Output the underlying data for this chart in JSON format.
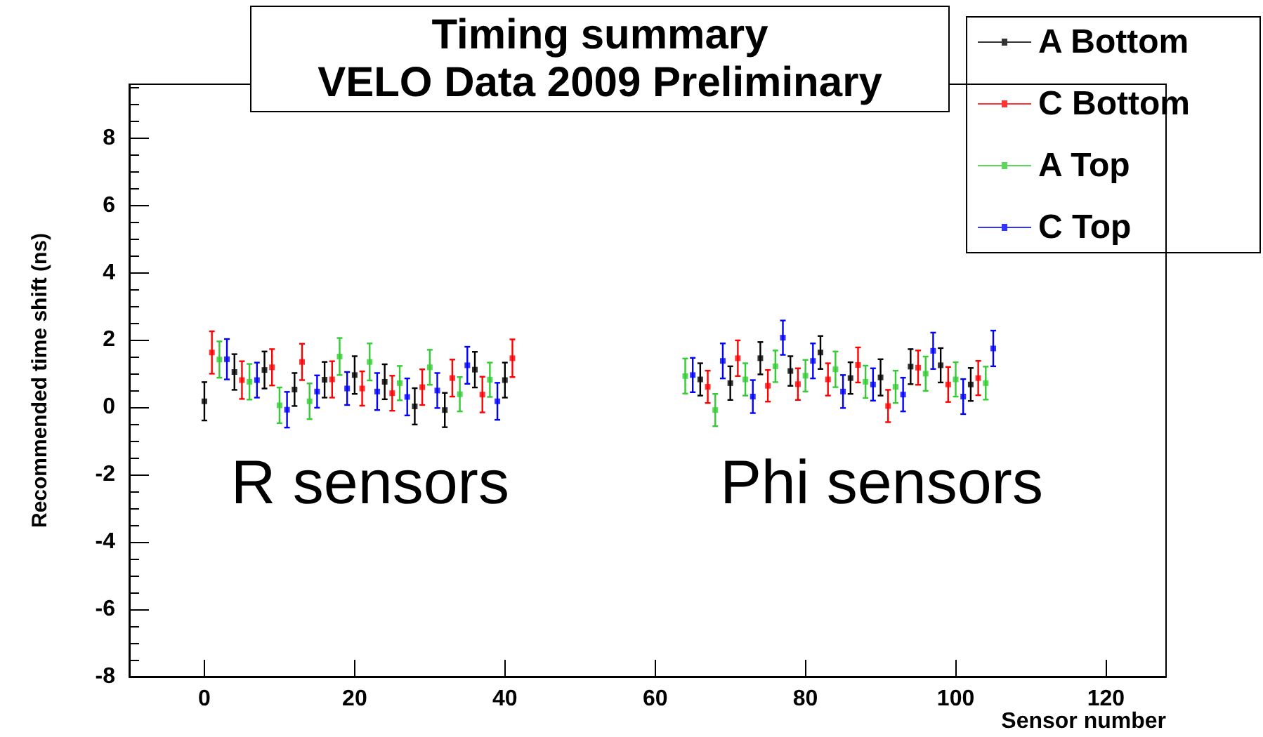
{
  "chart_data": {
    "type": "scatter",
    "title": "Timing summary",
    "subtitle": "VELO Data 2009 Preliminary",
    "xlabel": "Sensor number",
    "ylabel": "Recommended time shift (ns)",
    "xlim": [
      -10,
      128
    ],
    "xticks": [
      0,
      20,
      40,
      60,
      80,
      100,
      120
    ],
    "ylim": [
      -8,
      9.6
    ],
    "yticks": [
      -8,
      -6,
      -4,
      -2,
      0,
      2,
      4,
      6,
      8
    ],
    "grid": false,
    "legend": "top right",
    "marker": "square",
    "annotations": [
      "R sensors",
      "Phi sensors"
    ],
    "series": [
      {
        "name": "A Bottom",
        "color": "#000000",
        "x": [
          0,
          4,
          8,
          12,
          16,
          20,
          24,
          28,
          32,
          36,
          40,
          66,
          70,
          74,
          78,
          82,
          86,
          90,
          94,
          98,
          102
        ],
        "values": [
          0.18,
          1.05,
          1.11,
          0.53,
          0.82,
          0.96,
          0.76,
          0.03,
          -0.08,
          1.12,
          0.81,
          0.83,
          0.72,
          1.46,
          1.08,
          1.63,
          0.87,
          0.89,
          1.21,
          1.25,
          0.68
        ],
        "errors": [
          0.57,
          0.53,
          0.55,
          0.49,
          0.53,
          0.56,
          0.52,
          0.54,
          0.51,
          0.53,
          0.52,
          0.48,
          0.5,
          0.48,
          0.44,
          0.49,
          0.47,
          0.54,
          0.52,
          0.51,
          0.49
        ]
      },
      {
        "name": "C Bottom",
        "color": "#ff0000",
        "x": [
          1,
          5,
          9,
          13,
          17,
          21,
          25,
          29,
          33,
          37,
          41,
          67,
          71,
          75,
          79,
          83,
          87,
          91,
          95,
          99,
          103
        ],
        "values": [
          1.63,
          0.81,
          1.19,
          1.35,
          0.83,
          0.56,
          0.42,
          0.6,
          0.87,
          0.38,
          1.46,
          0.61,
          1.46,
          0.64,
          0.69,
          0.83,
          1.26,
          0.04,
          1.18,
          0.68,
          0.87
        ],
        "errors": [
          0.63,
          0.56,
          0.54,
          0.54,
          0.54,
          0.51,
          0.52,
          0.53,
          0.55,
          0.53,
          0.56,
          0.48,
          0.53,
          0.47,
          0.47,
          0.48,
          0.52,
          0.48,
          0.51,
          0.52,
          0.51
        ]
      },
      {
        "name": "A Top",
        "color": "#33cc33",
        "x": [
          2,
          6,
          10,
          14,
          18,
          22,
          26,
          30,
          34,
          38,
          64,
          68,
          72,
          76,
          80,
          84,
          88,
          92,
          96,
          100,
          104
        ],
        "values": [
          1.42,
          0.76,
          0.06,
          0.18,
          1.51,
          1.35,
          0.72,
          1.19,
          0.39,
          0.82,
          0.93,
          -0.08,
          0.83,
          1.22,
          0.94,
          1.13,
          0.76,
          0.61,
          1.0,
          0.83,
          0.72
        ],
        "errors": [
          0.54,
          0.53,
          0.53,
          0.53,
          0.55,
          0.55,
          0.51,
          0.52,
          0.51,
          0.51,
          0.52,
          0.48,
          0.48,
          0.47,
          0.47,
          0.53,
          0.48,
          0.48,
          0.51,
          0.51,
          0.49
        ]
      },
      {
        "name": "C Top",
        "color": "#0000ff",
        "x": [
          3,
          7,
          11,
          15,
          19,
          23,
          27,
          31,
          35,
          39,
          65,
          69,
          73,
          77,
          81,
          85,
          89,
          93,
          97,
          101,
          105
        ],
        "values": [
          1.43,
          0.81,
          -0.07,
          0.47,
          0.56,
          0.47,
          0.31,
          0.5,
          1.25,
          0.18,
          0.96,
          1.38,
          0.32,
          2.07,
          1.38,
          0.47,
          0.68,
          0.38,
          1.68,
          0.32,
          1.75
        ],
        "errors": [
          0.6,
          0.52,
          0.53,
          0.48,
          0.49,
          0.55,
          0.55,
          0.52,
          0.55,
          0.55,
          0.51,
          0.52,
          0.49,
          0.51,
          0.52,
          0.49,
          0.48,
          0.5,
          0.54,
          0.52,
          0.53
        ]
      }
    ]
  }
}
